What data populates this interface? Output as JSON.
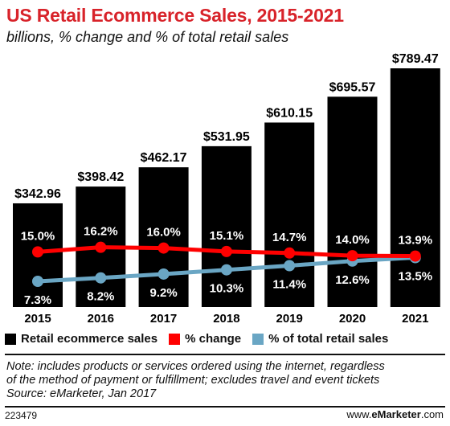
{
  "header": {
    "title": "US Retail Ecommerce Sales, 2015-2021",
    "subtitle": "billions, % change and % of total retail sales"
  },
  "chart_data": {
    "type": "bar",
    "categories": [
      "2015",
      "2016",
      "2017",
      "2018",
      "2019",
      "2020",
      "2021"
    ],
    "series": [
      {
        "name": "Retail ecommerce sales",
        "type": "bar",
        "color": "#000000",
        "values": [
          342.96,
          398.42,
          462.17,
          531.95,
          610.15,
          695.57,
          789.47
        ],
        "labels": [
          "$342.96",
          "$398.42",
          "$462.17",
          "$531.95",
          "$610.15",
          "$695.57",
          "$789.47"
        ]
      },
      {
        "name": "% change",
        "type": "line",
        "color": "#ff0000",
        "values": [
          15.0,
          16.2,
          16.0,
          15.1,
          14.7,
          14.0,
          13.9
        ],
        "labels": [
          "15.0%",
          "16.2%",
          "16.0%",
          "15.1%",
          "14.7%",
          "14.0%",
          "13.9%"
        ]
      },
      {
        "name": "% of total retail sales",
        "type": "line",
        "color": "#6aa6c4",
        "values": [
          7.3,
          8.2,
          9.2,
          10.3,
          11.4,
          12.6,
          13.5
        ],
        "labels": [
          "7.3%",
          "8.2%",
          "9.2%",
          "10.3%",
          "11.4%",
          "12.6%",
          "13.5%"
        ]
      }
    ],
    "legend_position": "bottom",
    "grid": false
  },
  "legend": {
    "items": [
      {
        "label": "Retail ecommerce sales",
        "color": "#000000"
      },
      {
        "label": "% change",
        "color": "#ff0000"
      },
      {
        "label": "% of total retail sales",
        "color": "#6aa6c4"
      }
    ]
  },
  "notes": {
    "line1": "Note: includes products or services ordered using the internet, regardless",
    "line2": "of the method of payment or fulfillment; excludes travel and event tickets",
    "source": "Source: eMarketer, Jan 2017"
  },
  "footer": {
    "id": "223479",
    "site_prefix": "www.",
    "site_brand": "eMarketer",
    "site_suffix": ".com"
  }
}
